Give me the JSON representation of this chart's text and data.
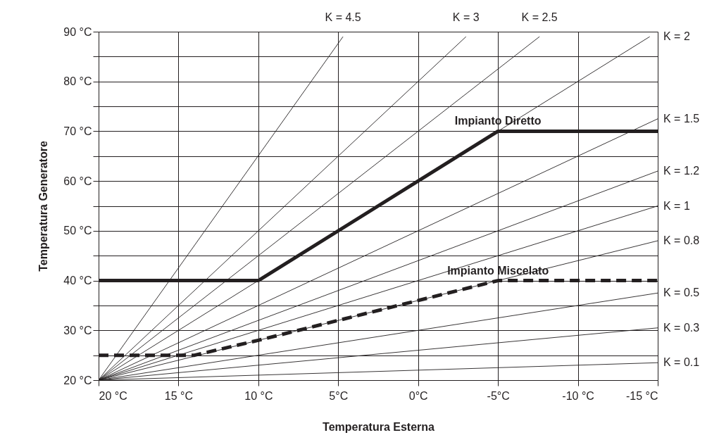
{
  "chart_data": {
    "type": "line",
    "xlabel": "Temperatura Esterna",
    "ylabel": "Temperatura Generatore",
    "xlim": [
      20,
      -15
    ],
    "ylim": [
      20,
      90
    ],
    "xticks": [
      {
        "value": 20,
        "label": "20 °C"
      },
      {
        "value": 15,
        "label": "15 °C"
      },
      {
        "value": 10,
        "label": "10 °C"
      },
      {
        "value": 5,
        "label": "5°C"
      },
      {
        "value": 0,
        "label": "0°C"
      },
      {
        "value": -5,
        "label": "-5°C"
      },
      {
        "value": -10,
        "label": "-10 °C"
      },
      {
        "value": -15,
        "label": "-15 °C"
      }
    ],
    "yticks": [
      {
        "value": 20,
        "label": "20 °C"
      },
      {
        "value": 25,
        "label": null
      },
      {
        "value": 30,
        "label": "30 °C"
      },
      {
        "value": 35,
        "label": null
      },
      {
        "value": 40,
        "label": "40 °C"
      },
      {
        "value": 45,
        "label": null
      },
      {
        "value": 50,
        "label": "50 °C"
      },
      {
        "value": 55,
        "label": null
      },
      {
        "value": 60,
        "label": "60 °C"
      },
      {
        "value": 65,
        "label": null
      },
      {
        "value": 70,
        "label": "70 °C"
      },
      {
        "value": 75,
        "label": null
      },
      {
        "value": 80,
        "label": "80 °C"
      },
      {
        "value": 85,
        "label": null
      },
      {
        "value": 90,
        "label": "90 °C"
      }
    ],
    "grid": true,
    "legend": false,
    "marker": "none",
    "series": [
      {
        "name": "K = 4.5",
        "color": "#231f20",
        "x": [
          20,
          4.7
        ],
        "values": [
          20,
          89
        ]
      },
      {
        "name": "K = 3",
        "color": "#231f20",
        "x": [
          20,
          -3
        ],
        "values": [
          20,
          89
        ]
      },
      {
        "name": "K = 2.5",
        "color": "#231f20",
        "x": [
          20,
          -7.6
        ],
        "values": [
          20,
          89
        ]
      },
      {
        "name": "K = 2",
        "color": "#231f20",
        "x": [
          20,
          -14.5
        ],
        "values": [
          20,
          89
        ]
      },
      {
        "name": "K = 1.5",
        "color": "#231f20",
        "x": [
          20,
          -15
        ],
        "values": [
          20,
          72.5
        ]
      },
      {
        "name": "K = 1.2",
        "color": "#231f20",
        "x": [
          20,
          -15
        ],
        "values": [
          20,
          62
        ]
      },
      {
        "name": "K = 1",
        "color": "#231f20",
        "x": [
          20,
          -15
        ],
        "values": [
          20,
          55
        ]
      },
      {
        "name": "K = 0.8",
        "color": "#231f20",
        "x": [
          20,
          -15
        ],
        "values": [
          20,
          48
        ]
      },
      {
        "name": "K = 0.5",
        "color": "#231f20",
        "x": [
          20,
          -15
        ],
        "values": [
          20,
          37.5
        ]
      },
      {
        "name": "K = 0.3",
        "color": "#231f20",
        "x": [
          20,
          -15
        ],
        "values": [
          20,
          30.5
        ]
      },
      {
        "name": "K = 0.1",
        "color": "#231f20",
        "x": [
          20,
          -15
        ],
        "values": [
          20,
          23.5
        ]
      },
      {
        "name": "Impianto Diretto",
        "color": "#231f20",
        "x": [
          20,
          10,
          -5,
          -15
        ],
        "values": [
          40,
          40,
          70,
          70
        ]
      },
      {
        "name": "Impianto Miscelato",
        "color": "#231f20",
        "line_style": "dashed",
        "x": [
          20,
          14,
          10,
          5,
          0,
          -5,
          -15
        ],
        "values": [
          25,
          25,
          28,
          32,
          36,
          40,
          40
        ]
      }
    ]
  }
}
